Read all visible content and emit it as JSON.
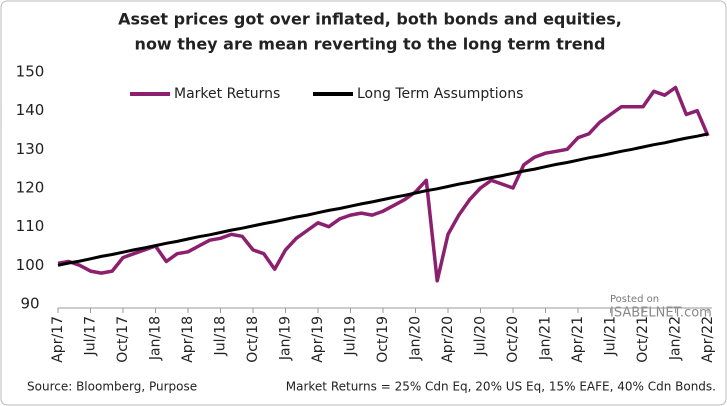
{
  "chart_data": {
    "type": "line",
    "title": [
      "Asset prices got over inflated, both bonds and equities,",
      "now they are mean reverting to the long term trend"
    ],
    "categories": [
      "Apr/17",
      null,
      null,
      "Jul/17",
      null,
      null,
      "Oct/17",
      null,
      null,
      "Jan/18",
      null,
      null,
      "Apr/18",
      null,
      null,
      "Jul/18",
      null,
      null,
      "Oct/18",
      null,
      null,
      "Jan/19",
      null,
      null,
      "Apr/19",
      null,
      null,
      "Jul/19",
      null,
      null,
      "Oct/19",
      null,
      null,
      "Jan/20",
      null,
      null,
      "Apr/20",
      null,
      null,
      "Jul/20",
      null,
      null,
      "Oct/20",
      null,
      null,
      "Jan/21",
      null,
      null,
      "Apr/21",
      null,
      null,
      "Jul/21",
      null,
      null,
      "Oct/21",
      null,
      null,
      "Jan/22",
      null,
      null,
      "Apr/22"
    ],
    "series": [
      {
        "name": "Market Returns",
        "color": "#8c1f6e",
        "values": [
          100.5,
          101,
          100,
          98.5,
          98,
          98.5,
          102,
          103,
          104,
          105,
          101,
          103,
          103.5,
          105,
          106.5,
          107,
          108,
          107.5,
          104,
          103,
          99,
          104,
          107,
          109,
          111,
          110,
          112,
          113,
          113.5,
          113,
          114,
          115.5,
          117,
          119,
          122,
          96,
          108,
          113,
          117,
          120,
          122,
          121,
          120,
          126,
          128,
          129,
          129.5,
          130,
          133,
          134,
          137,
          139,
          141,
          141,
          141,
          145,
          144,
          146,
          139,
          140,
          133.5
        ]
      },
      {
        "name": "Long Term Assumptions",
        "color": "#000000",
        "values": [
          100,
          100.6,
          101.1,
          101.7,
          102.3,
          102.8,
          103.4,
          104,
          104.5,
          105.1,
          105.7,
          106.2,
          106.8,
          107.4,
          107.9,
          108.5,
          109.1,
          109.6,
          110.2,
          110.8,
          111.3,
          111.9,
          112.5,
          113,
          113.6,
          114.2,
          114.7,
          115.3,
          115.9,
          116.4,
          117,
          117.6,
          118.1,
          118.7,
          119.3,
          119.8,
          120.4,
          121,
          121.5,
          122.1,
          122.7,
          123.2,
          123.8,
          124.4,
          124.9,
          125.5,
          126.1,
          126.6,
          127.2,
          127.8,
          128.3,
          128.9,
          129.5,
          130,
          130.6,
          131.2,
          131.7,
          132.3,
          132.9,
          133.4,
          134
        ]
      }
    ],
    "ylim": [
      90,
      150
    ],
    "yticks": [
      90,
      100,
      110,
      120,
      130,
      140,
      150
    ],
    "grid": false,
    "legend": "top-left",
    "source": "Source: Bloomberg, Purpose",
    "footnote": "Market Returns = 25% Cdn Eq, 20% US Eq, 15% EAFE, 40% Cdn Bonds.",
    "watermark": [
      "Posted on",
      "ISABELNET.com"
    ]
  }
}
